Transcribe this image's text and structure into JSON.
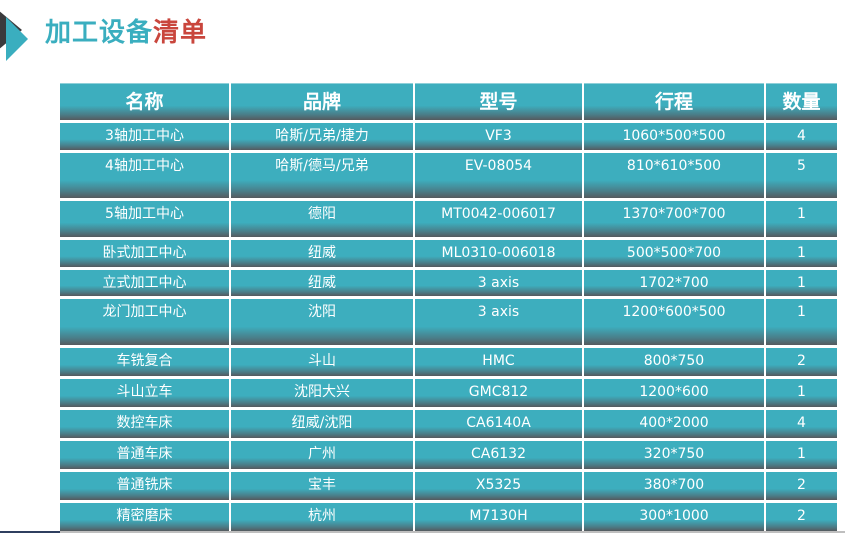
{
  "title": {
    "part1": "加工设备",
    "part2": "清单"
  },
  "colors": {
    "accent_teal": "#3aaebf",
    "accent_red": "#c9463d",
    "dark": "#3a3a3c"
  },
  "table": {
    "headers": [
      "名称",
      "品牌",
      "型号",
      "行程",
      "数量"
    ],
    "rows": [
      [
        "3轴加工中心",
        "哈斯/兄弟/捷力",
        "VF3",
        "1060*500*500",
        "4"
      ],
      [
        "4轴加工中心",
        "哈斯/德马/兄弟",
        "EV-08054",
        "810*610*500",
        "5"
      ],
      [
        "5轴加工中心",
        "德阳",
        "MT0042-006017",
        "1370*700*700",
        "1"
      ],
      [
        "卧式加工中心",
        "纽威",
        "ML0310-006018",
        "500*500*700",
        "1"
      ],
      [
        "立式加工中心",
        "纽威",
        "3 axis",
        "1702*700",
        "1"
      ],
      [
        "龙门加工中心",
        "沈阳",
        "3 axis",
        "1200*600*500",
        "1"
      ],
      [
        "车铣复合",
        "斗山",
        "HMC",
        "800*750",
        "2"
      ],
      [
        "斗山立车",
        "沈阳大兴",
        "GMC812",
        "1200*600",
        "1"
      ],
      [
        "数控车床",
        "纽威/沈阳",
        "CA6140A",
        "400*2000",
        "4"
      ],
      [
        "普通车床",
        "广州",
        "CA6132",
        "320*750",
        "1"
      ],
      [
        "普通铣床",
        "宝丰",
        "X5325",
        "380*700",
        "2"
      ],
      [
        "精密磨床",
        "杭州",
        "M7130H",
        "300*1000",
        "2"
      ]
    ]
  }
}
